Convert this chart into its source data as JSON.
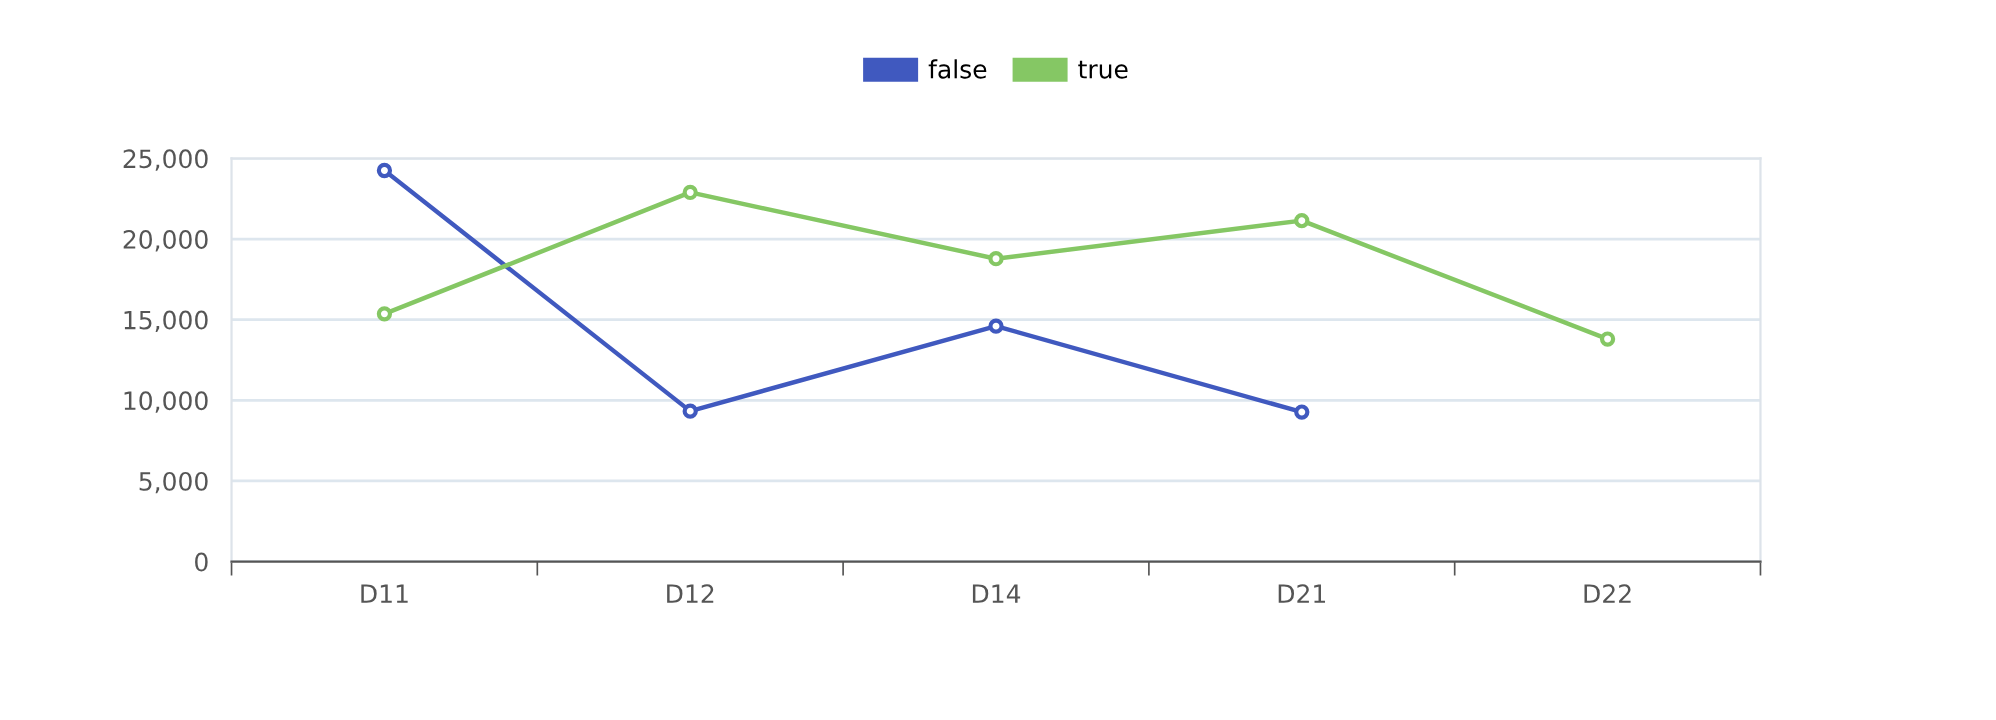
{
  "chart_data": {
    "type": "line",
    "categories": [
      "D11",
      "D12",
      "D14",
      "D21",
      "D22"
    ],
    "series": [
      {
        "name": "false",
        "color": "#4059bf",
        "values": [
          24250,
          9330,
          14600,
          9270,
          null
        ]
      },
      {
        "name": "true",
        "color": "#85c764",
        "values": [
          15360,
          22890,
          18780,
          21140,
          13800
        ]
      }
    ],
    "ylim": [
      0,
      25000
    ],
    "yticks": [
      {
        "value": 0,
        "label": "0"
      },
      {
        "value": 5000,
        "label": "5,000"
      },
      {
        "value": 10000,
        "label": "10,000"
      },
      {
        "value": 15000,
        "label": "15,000"
      },
      {
        "value": 20000,
        "label": "20,000"
      },
      {
        "value": 25000,
        "label": "25,000"
      }
    ],
    "grid": "y",
    "legend": "top",
    "marker": "circle",
    "line_style": "solid"
  }
}
